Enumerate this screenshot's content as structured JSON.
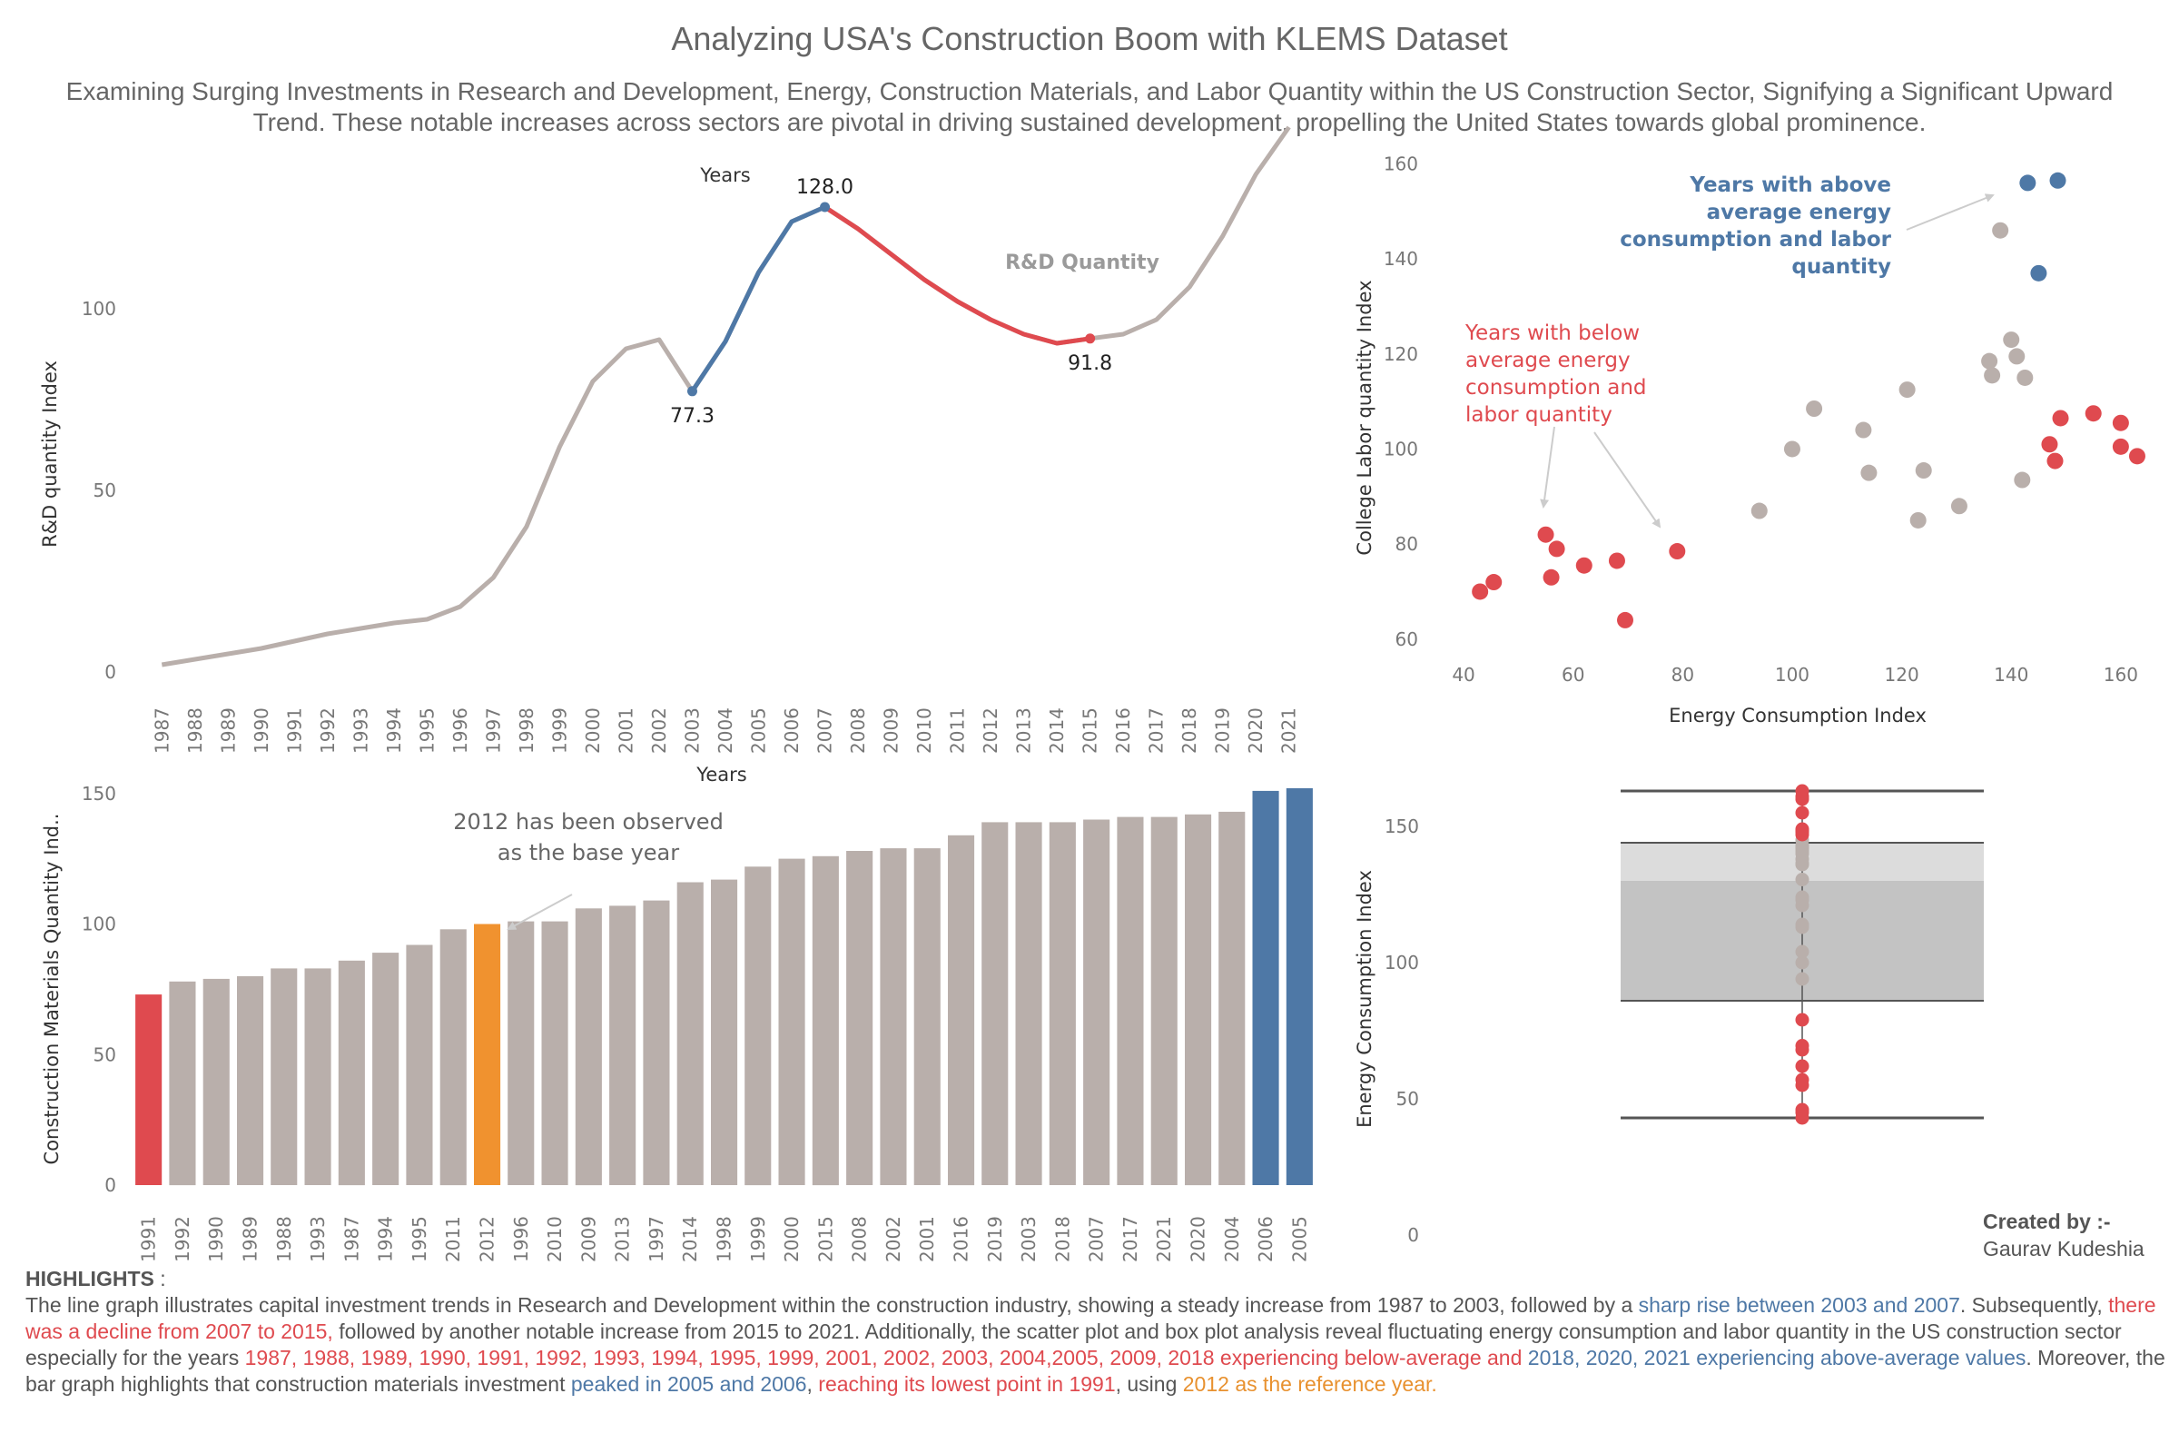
{
  "title": "Analyzing USA's Construction Boom with KLEMS Dataset",
  "subtitle": "Examining Surging Investments in Research and Development, Energy, Construction Materials, and Labor Quantity within the US Construction Sector, Signifying a Significant Upward Trend. These notable increases across sectors are pivotal in driving sustained development, propelling the United States towards global prominence.",
  "colors": {
    "grey": "#b9afab",
    "blue": "#4e78a6",
    "red": "#df4a4f",
    "orange": "#f0922f",
    "text": "#555555"
  },
  "annotations": {
    "rd_label": "R&D Quantity",
    "base_year": [
      "2012 has been observed",
      "as the base year"
    ],
    "above_avg": [
      "Years with above",
      "average energy",
      "consumption and labor",
      "quantity"
    ],
    "below_avg": [
      "Years with below",
      "average energy",
      "consumption and",
      "labor quantity"
    ]
  },
  "credits": {
    "label": "Created by :-",
    "name": "Gaurav Kudeshia"
  },
  "highlights": {
    "head": "HIGHLIGHTS",
    "colon": " :",
    "segments": [
      {
        "text": "The line graph illustrates capital investment trends in Research and Development within the construction industry, showing a steady increase from 1987 to 2003, followed by a ",
        "color": "grey"
      },
      {
        "text": "sharp rise between 2003 and 2007",
        "color": "blue"
      },
      {
        "text": ". Subsequently, ",
        "color": "grey"
      },
      {
        "text": "there was a decline from 2007 to 2015,",
        "color": "red"
      },
      {
        "text": " followed by another notable increase from 2015 to 2021. Additionally, the scatter plot and box plot analysis reveal fluctuating energy consumption and labor quantity in the US construction sector especially for the years ",
        "color": "grey"
      },
      {
        "text": "1987, 1988, 1989, 1990, 1991, 1992, 1993, 1994, 1995, 1999, 2001, 2002, 2003, 2004,2005, 2009, 2018 experiencing below-average and ",
        "color": "red"
      },
      {
        "text": "2018, 2020, 2021  experiencing above-average values",
        "color": "blue"
      },
      {
        "text": ". Moreover, the bar graph highlights that construction materials investment ",
        "color": "grey"
      },
      {
        "text": "peaked in 2005 and 2006",
        "color": "blue"
      },
      {
        "text": ", ",
        "color": "grey"
      },
      {
        "text": "reaching its lowest point in 1991",
        "color": "red"
      },
      {
        "text": ", using ",
        "color": "grey"
      },
      {
        "text": "2012 as the reference year.",
        "color": "orange"
      }
    ]
  },
  "chart_data": [
    {
      "type": "line",
      "top_label": "Years",
      "ylabel": "R&D quantity Index",
      "ylim": [
        0,
        140
      ],
      "yticks": [
        0,
        50,
        100
      ],
      "x": [
        1987,
        1988,
        1989,
        1990,
        1991,
        1992,
        1993,
        1994,
        1995,
        1996,
        1997,
        1998,
        1999,
        2000,
        2001,
        2002,
        2003,
        2004,
        2005,
        2006,
        2007,
        2008,
        2009,
        2010,
        2011,
        2012,
        2013,
        2014,
        2015,
        2016,
        2017,
        2018,
        2019,
        2020,
        2021
      ],
      "values": [
        2,
        3.5,
        5,
        6.5,
        8.5,
        10.5,
        12,
        13.5,
        14.5,
        18,
        26,
        40,
        62,
        80,
        89,
        91.5,
        77.3,
        91,
        110,
        124,
        128,
        122,
        115,
        108,
        102,
        97,
        93,
        90.5,
        91.8,
        93,
        97,
        106,
        120,
        137,
        150
      ],
      "segments": [
        {
          "name": "rise 2003-2007",
          "from": 2003,
          "to": 2007,
          "color": "blue"
        },
        {
          "name": "decline 2007-2015",
          "from": 2007,
          "to": 2015,
          "color": "red"
        }
      ],
      "labels": [
        {
          "x": 2003,
          "text": "77.3"
        },
        {
          "x": 2007,
          "text": "128.0"
        },
        {
          "x": 2015,
          "text": "91.8"
        }
      ]
    },
    {
      "type": "scatter",
      "xlabel": "Energy Consumption Index",
      "ylabel": "College Labor quantity Index",
      "xlim": [
        38,
        164
      ],
      "ylim": [
        55,
        162
      ],
      "xticks": [
        40,
        60,
        80,
        100,
        120,
        140,
        160
      ],
      "yticks": [
        60,
        80,
        100,
        120,
        140,
        160
      ],
      "points": [
        {
          "x": 43,
          "y": 70,
          "g": "red"
        },
        {
          "x": 45.5,
          "y": 72,
          "g": "red"
        },
        {
          "x": 55,
          "y": 82,
          "g": "red"
        },
        {
          "x": 57,
          "y": 79,
          "g": "red"
        },
        {
          "x": 56,
          "y": 73,
          "g": "red"
        },
        {
          "x": 62,
          "y": 75.5,
          "g": "red"
        },
        {
          "x": 68,
          "y": 76.5,
          "g": "red"
        },
        {
          "x": 69.5,
          "y": 64,
          "g": "red"
        },
        {
          "x": 79,
          "y": 78.5,
          "g": "red"
        },
        {
          "x": 94,
          "y": 87,
          "g": "grey"
        },
        {
          "x": 100,
          "y": 100,
          "g": "grey"
        },
        {
          "x": 104,
          "y": 108.5,
          "g": "grey"
        },
        {
          "x": 113,
          "y": 104,
          "g": "grey"
        },
        {
          "x": 114,
          "y": 95,
          "g": "grey"
        },
        {
          "x": 121,
          "y": 112.5,
          "g": "grey"
        },
        {
          "x": 123,
          "y": 85,
          "g": "grey"
        },
        {
          "x": 124,
          "y": 95.5,
          "g": "grey"
        },
        {
          "x": 130.5,
          "y": 88,
          "g": "grey"
        },
        {
          "x": 136,
          "y": 118.5,
          "g": "grey"
        },
        {
          "x": 136.5,
          "y": 115.5,
          "g": "grey"
        },
        {
          "x": 138,
          "y": 146,
          "g": "grey"
        },
        {
          "x": 140,
          "y": 123,
          "g": "grey"
        },
        {
          "x": 141,
          "y": 119.5,
          "g": "grey"
        },
        {
          "x": 142,
          "y": 93.5,
          "g": "grey"
        },
        {
          "x": 142.5,
          "y": 115,
          "g": "grey"
        },
        {
          "x": 143,
          "y": 156,
          "g": "blue"
        },
        {
          "x": 145,
          "y": 137,
          "g": "blue"
        },
        {
          "x": 148.5,
          "y": 156.5,
          "g": "blue"
        },
        {
          "x": 147,
          "y": 101,
          "g": "red"
        },
        {
          "x": 148,
          "y": 97.5,
          "g": "red"
        },
        {
          "x": 149,
          "y": 106.5,
          "g": "red"
        },
        {
          "x": 155,
          "y": 107.5,
          "g": "red"
        },
        {
          "x": 160,
          "y": 105.5,
          "g": "red"
        },
        {
          "x": 160,
          "y": 100.5,
          "g": "red"
        },
        {
          "x": 163,
          "y": 98.5,
          "g": "red"
        }
      ]
    },
    {
      "type": "bar",
      "top_label": "Years",
      "ylabel": "Construction Materials Quantity Ind..",
      "ylim": [
        0,
        160
      ],
      "yticks": [
        0,
        50,
        100,
        150
      ],
      "categories": [
        "1991",
        "1992",
        "1990",
        "1989",
        "1988",
        "1993",
        "1987",
        "1994",
        "1995",
        "2011",
        "2012",
        "1996",
        "2010",
        "2009",
        "2013",
        "1997",
        "2014",
        "1998",
        "1999",
        "2000",
        "2015",
        "2008",
        "2002",
        "2001",
        "2016",
        "2019",
        "2003",
        "2018",
        "2007",
        "2017",
        "2021",
        "2020",
        "2004",
        "2006",
        "2005"
      ],
      "values": [
        73,
        78,
        79,
        80,
        83,
        83,
        86,
        89,
        92,
        98,
        100,
        101,
        101,
        106,
        107,
        109,
        116,
        117,
        122,
        125,
        126,
        128,
        129,
        129,
        134,
        139,
        139,
        139,
        140,
        141,
        141,
        142,
        143,
        151,
        152
      ],
      "highlight": {
        "1991": "red",
        "2012": "orange",
        "2006": "blue",
        "2005": "blue"
      }
    },
    {
      "type": "box",
      "ylabel": "Energy Consumption Index",
      "ylim": [
        0,
        175
      ],
      "yticks": [
        0,
        50,
        100,
        150
      ],
      "whisker_low": 43,
      "q1": 86,
      "median": 130,
      "q3": 144,
      "whisker_high": 163,
      "points": [
        {
          "y": 43,
          "g": "red"
        },
        {
          "y": 45,
          "g": "red"
        },
        {
          "y": 46,
          "g": "red"
        },
        {
          "y": 55,
          "g": "red"
        },
        {
          "y": 57,
          "g": "red"
        },
        {
          "y": 62,
          "g": "red"
        },
        {
          "y": 68,
          "g": "red"
        },
        {
          "y": 69.5,
          "g": "red"
        },
        {
          "y": 79,
          "g": "red"
        },
        {
          "y": 94,
          "g": "grey"
        },
        {
          "y": 100,
          "g": "grey"
        },
        {
          "y": 104,
          "g": "grey"
        },
        {
          "y": 113,
          "g": "grey"
        },
        {
          "y": 114,
          "g": "grey"
        },
        {
          "y": 121,
          "g": "grey"
        },
        {
          "y": 123,
          "g": "grey"
        },
        {
          "y": 124,
          "g": "grey"
        },
        {
          "y": 130.5,
          "g": "grey"
        },
        {
          "y": 136,
          "g": "grey"
        },
        {
          "y": 136.5,
          "g": "grey"
        },
        {
          "y": 138,
          "g": "grey"
        },
        {
          "y": 140,
          "g": "grey"
        },
        {
          "y": 141,
          "g": "grey"
        },
        {
          "y": 142,
          "g": "grey"
        },
        {
          "y": 142.5,
          "g": "grey"
        },
        {
          "y": 143,
          "g": "grey"
        },
        {
          "y": 145,
          "g": "grey"
        },
        {
          "y": 147,
          "g": "red"
        },
        {
          "y": 148,
          "g": "red"
        },
        {
          "y": 148.5,
          "g": "red"
        },
        {
          "y": 149,
          "g": "red"
        },
        {
          "y": 155,
          "g": "red"
        },
        {
          "y": 160,
          "g": "red"
        },
        {
          "y": 161,
          "g": "red"
        },
        {
          "y": 163,
          "g": "red"
        }
      ]
    }
  ]
}
